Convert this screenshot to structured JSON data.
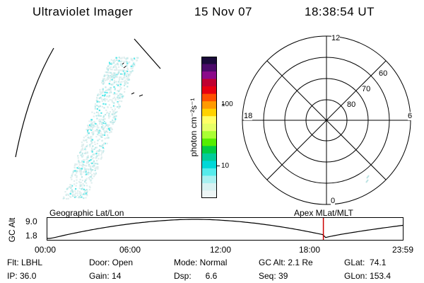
{
  "header": {
    "instrument": "Ultraviolet Imager",
    "date": "15 Nov 07",
    "time": "18:38:54 UT"
  },
  "colorbar": {
    "label": "photon cm⁻²s⁻¹",
    "ticks": [
      "100",
      "10"
    ],
    "colors": [
      "#1a0a3a",
      "#4b0a6a",
      "#8b0a8a",
      "#c00030",
      "#e80010",
      "#ff5000",
      "#ff9a00",
      "#ffd200",
      "#ffff66",
      "#e6ff66",
      "#aaff33",
      "#55ee00",
      "#00cc44",
      "#00cc99",
      "#00d8d8",
      "#55ebeb",
      "#a8f0f0",
      "#d8f2f2",
      "#eef6f6"
    ]
  },
  "polar": {
    "clock_labels": {
      "top": "12",
      "right": "6",
      "bottom": "0",
      "left": "18"
    },
    "lat_labels": [
      "60",
      "70",
      "80"
    ]
  },
  "orbit": {
    "ylabel": "GC Alt",
    "yticks": [
      "9.0",
      "1.8"
    ],
    "left_title": "Geographic Lat/Lon",
    "right_title": "Apex  MLat/MLT",
    "xticks": [
      "00:00",
      "06:00",
      "12:00",
      "18:00",
      "23:59"
    ],
    "marker_color": "#cc0000",
    "current_hours": 18.65
  },
  "info": {
    "col1": [
      "Flt: LBHL",
      "IP: 36.0"
    ],
    "col2": [
      "Door: Open",
      "Gain: 14"
    ],
    "col3": [
      "Mode: Normal",
      "Dsp:      6.6"
    ],
    "col4": [
      "GC Alt: 2.1 Re",
      "Seq: 39"
    ],
    "col5": [
      "GLat:  74.1",
      "GLon: 153.4"
    ]
  }
}
